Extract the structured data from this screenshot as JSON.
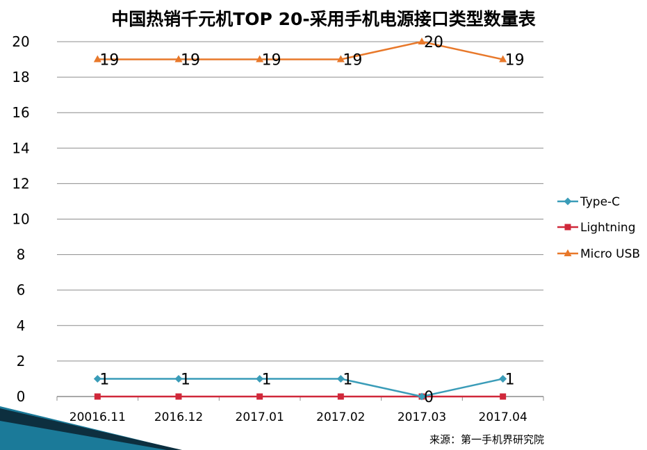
{
  "colors": {
    "Type-C": "#3a9cb8",
    "Lightning": "#d0283a",
    "Micro USB": "#e8782a",
    "grid": "#8c8c8c",
    "decor_dark": "#0d2f3f",
    "decor_teal": "#1b7a99"
  },
  "source_text": "来源：第一手机界研究院",
  "chart_data": {
    "type": "line",
    "title": "中国热销千元机TOP 20-采用手机电源接口类型数量表",
    "categories": [
      "20016.11",
      "2016.12",
      "2017.01",
      "2017.02",
      "2017.03",
      "2017.04"
    ],
    "ylim": [
      0,
      20
    ],
    "yticks": [
      0,
      2,
      4,
      6,
      8,
      10,
      12,
      14,
      16,
      18,
      20
    ],
    "grid": true,
    "legend_position": "right",
    "series": [
      {
        "name": "Type-C",
        "marker": "diamond",
        "values": [
          1,
          1,
          1,
          1,
          0,
          1
        ],
        "labels": true
      },
      {
        "name": "Lightning",
        "marker": "square",
        "values": [
          0,
          0,
          0,
          0,
          0,
          0
        ],
        "labels": false
      },
      {
        "name": "Micro USB",
        "marker": "triangle",
        "values": [
          19,
          19,
          19,
          19,
          20,
          19
        ],
        "labels": true
      }
    ]
  }
}
